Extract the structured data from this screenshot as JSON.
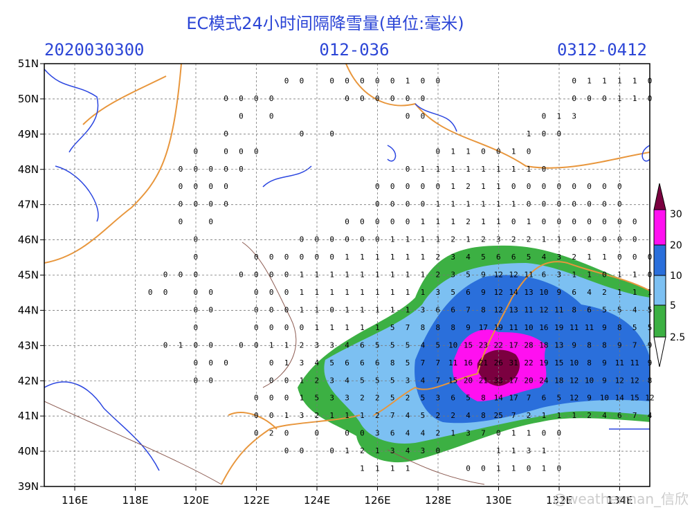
{
  "header": {
    "title": "EC模式24小时间隔降雪量(单位:毫米)",
    "init_time": "2020030300",
    "forecast_hours": "012-036",
    "valid_period": "0312-0412"
  },
  "lon_labels": [
    "116E",
    "118E",
    "120E",
    "122E",
    "124E",
    "126E",
    "128E",
    "130E",
    "132E",
    "134E"
  ],
  "lat_labels": [
    "51N",
    "50N",
    "49N",
    "48N",
    "47N",
    "46N",
    "45N",
    "44N",
    "43N",
    "42N",
    "41N",
    "40N",
    "39N"
  ],
  "colorbar_labels": [
    "30",
    "20",
    "10",
    "5",
    "2.5"
  ],
  "watermark": "@weatherman_信欣",
  "grid_values": [
    [
      null,
      null,
      null,
      null,
      null,
      null,
      null,
      null,
      null,
      null,
      null,
      null,
      null,
      null,
      null,
      null,
      0,
      0,
      null,
      0,
      0,
      0,
      0,
      0,
      1,
      0,
      0,
      null,
      null,
      null,
      null,
      null,
      null,
      null,
      null,
      0,
      1,
      1,
      1,
      1,
      0
    ],
    [
      null,
      null,
      null,
      null,
      null,
      null,
      null,
      null,
      null,
      null,
      null,
      null,
      0,
      0,
      0,
      0,
      null,
      null,
      null,
      null,
      0,
      0,
      0,
      0,
      0,
      0,
      null,
      null,
      null,
      null,
      null,
      null,
      null,
      null,
      null,
      0,
      0,
      0,
      1,
      1,
      0
    ],
    [
      null,
      null,
      null,
      null,
      null,
      null,
      null,
      null,
      null,
      null,
      null,
      null,
      null,
      0,
      null,
      0,
      null,
      null,
      null,
      null,
      null,
      null,
      null,
      null,
      0,
      0,
      null,
      null,
      null,
      null,
      null,
      null,
      null,
      0,
      1,
      3,
      null,
      null,
      null,
      null,
      null
    ],
    [
      null,
      null,
      null,
      null,
      null,
      null,
      null,
      null,
      null,
      null,
      null,
      null,
      0,
      null,
      null,
      null,
      null,
      0,
      null,
      0,
      null,
      null,
      null,
      null,
      null,
      null,
      null,
      null,
      null,
      null,
      null,
      null,
      1,
      0,
      0,
      null,
      null,
      null,
      null,
      null,
      null
    ],
    [
      null,
      null,
      null,
      null,
      null,
      null,
      null,
      null,
      null,
      null,
      0,
      null,
      0,
      0,
      0,
      null,
      null,
      null,
      null,
      null,
      null,
      null,
      null,
      null,
      null,
      null,
      0,
      1,
      1,
      0,
      0,
      1,
      0,
      null,
      null,
      null,
      null,
      null,
      null,
      null,
      null
    ],
    [
      null,
      null,
      null,
      null,
      null,
      null,
      null,
      null,
      null,
      0,
      0,
      0,
      0,
      0,
      null,
      null,
      null,
      null,
      null,
      null,
      null,
      null,
      null,
      null,
      0,
      1,
      1,
      1,
      1,
      1,
      1,
      1,
      1,
      0,
      null,
      null,
      null,
      null,
      null,
      null,
      null
    ],
    [
      null,
      null,
      null,
      null,
      null,
      null,
      null,
      null,
      null,
      0,
      0,
      0,
      0,
      null,
      null,
      null,
      null,
      null,
      null,
      null,
      null,
      null,
      0,
      0,
      0,
      0,
      0,
      1,
      2,
      1,
      1,
      0,
      0,
      0,
      0,
      0,
      0,
      0,
      0,
      null,
      null
    ],
    [
      null,
      null,
      null,
      null,
      null,
      null,
      null,
      null,
      null,
      0,
      0,
      0,
      0,
      null,
      null,
      null,
      null,
      null,
      null,
      null,
      null,
      null,
      0,
      0,
      0,
      0,
      1,
      1,
      1,
      1,
      1,
      1,
      0,
      0,
      0,
      0,
      0,
      0,
      0,
      null,
      null
    ],
    [
      null,
      null,
      null,
      null,
      null,
      null,
      null,
      null,
      null,
      0,
      null,
      0,
      null,
      null,
      null,
      null,
      null,
      null,
      null,
      null,
      0,
      0,
      0,
      0,
      0,
      1,
      1,
      1,
      2,
      1,
      1,
      0,
      1,
      0,
      0,
      0,
      0,
      0,
      0,
      0,
      null
    ],
    [
      null,
      null,
      null,
      null,
      null,
      null,
      null,
      null,
      null,
      null,
      0,
      null,
      null,
      null,
      null,
      null,
      null,
      0,
      0,
      0,
      0,
      0,
      0,
      1,
      1,
      1,
      1,
      2,
      1,
      2,
      3,
      2,
      2,
      1,
      1,
      0,
      0,
      0,
      0,
      0,
      null
    ],
    [
      null,
      null,
      null,
      null,
      null,
      null,
      null,
      null,
      null,
      null,
      0,
      null,
      null,
      null,
      0,
      0,
      0,
      0,
      0,
      0,
      1,
      1,
      1,
      1,
      1,
      1,
      2,
      3,
      4,
      5,
      6,
      6,
      5,
      4,
      3,
      2,
      1,
      1,
      0,
      0,
      0
    ],
    [
      null,
      null,
      null,
      null,
      null,
      null,
      null,
      null,
      0,
      0,
      0,
      null,
      null,
      0,
      0,
      0,
      0,
      1,
      1,
      1,
      1,
      1,
      1,
      1,
      1,
      1,
      2,
      3,
      5,
      9,
      12,
      12,
      11,
      6,
      3,
      1,
      1,
      0,
      1,
      1,
      0
    ],
    [
      null,
      null,
      null,
      null,
      null,
      null,
      null,
      0,
      0,
      null,
      0,
      0,
      null,
      null,
      0,
      0,
      0,
      1,
      1,
      1,
      1,
      1,
      1,
      1,
      1,
      1,
      3,
      5,
      6,
      9,
      12,
      14,
      13,
      10,
      9,
      6,
      4,
      2,
      1,
      1,
      1
    ],
    [
      null,
      null,
      null,
      null,
      null,
      null,
      null,
      null,
      null,
      null,
      0,
      0,
      null,
      null,
      0,
      0,
      0,
      1,
      1,
      0,
      1,
      1,
      1,
      1,
      1,
      3,
      6,
      6,
      7,
      8,
      12,
      13,
      11,
      12,
      11,
      8,
      6,
      5,
      5,
      4,
      5
    ],
    [
      null,
      null,
      null,
      null,
      null,
      null,
      null,
      null,
      null,
      null,
      0,
      null,
      null,
      null,
      0,
      0,
      0,
      0,
      1,
      1,
      1,
      1,
      1,
      5,
      7,
      8,
      8,
      8,
      9,
      17,
      19,
      11,
      10,
      16,
      19,
      11,
      11,
      9,
      8,
      5,
      5
    ],
    [
      null,
      null,
      null,
      null,
      null,
      null,
      null,
      null,
      0,
      1,
      0,
      0,
      null,
      0,
      0,
      1,
      1,
      2,
      3,
      3,
      4,
      6,
      5,
      5,
      5,
      4,
      5,
      10,
      15,
      23,
      22,
      17,
      28,
      18,
      13,
      9,
      8,
      8,
      9,
      7,
      9
    ],
    [
      null,
      null,
      null,
      null,
      null,
      null,
      null,
      null,
      null,
      null,
      0,
      0,
      0,
      null,
      null,
      0,
      1,
      3,
      4,
      5,
      6,
      6,
      6,
      8,
      5,
      7,
      7,
      11,
      16,
      21,
      26,
      31,
      22,
      19,
      15,
      10,
      8,
      9,
      11,
      11,
      9
    ],
    [
      null,
      null,
      null,
      null,
      null,
      null,
      null,
      null,
      null,
      null,
      0,
      0,
      null,
      null,
      null,
      0,
      0,
      1,
      2,
      3,
      4,
      5,
      5,
      5,
      3,
      4,
      7,
      15,
      20,
      21,
      33,
      17,
      20,
      24,
      18,
      12,
      10,
      9,
      12,
      12,
      8
    ],
    [
      null,
      null,
      null,
      null,
      null,
      null,
      null,
      null,
      null,
      null,
      null,
      null,
      null,
      null,
      0,
      0,
      0,
      1,
      5,
      3,
      3,
      2,
      2,
      5,
      2,
      5,
      3,
      6,
      5,
      8,
      14,
      17,
      7,
      6,
      5,
      12,
      9,
      10,
      14,
      15,
      12
    ],
    [
      null,
      null,
      null,
      null,
      null,
      null,
      null,
      null,
      null,
      null,
      null,
      null,
      null,
      null,
      0,
      0,
      1,
      3,
      2,
      1,
      1,
      1,
      2,
      7,
      4,
      5,
      2,
      2,
      4,
      8,
      25,
      7,
      2,
      1,
      1,
      1,
      2,
      4,
      6,
      7,
      4
    ],
    [
      null,
      null,
      null,
      null,
      null,
      null,
      null,
      null,
      null,
      null,
      null,
      null,
      null,
      null,
      0,
      2,
      0,
      null,
      0,
      null,
      0,
      0,
      3,
      6,
      4,
      4,
      2,
      1,
      3,
      7,
      0,
      1,
      1,
      0,
      0,
      null,
      null,
      null,
      null,
      null,
      null
    ],
    [
      null,
      null,
      null,
      null,
      null,
      null,
      null,
      null,
      null,
      null,
      null,
      null,
      null,
      null,
      null,
      null,
      0,
      0,
      null,
      0,
      1,
      2,
      1,
      3,
      4,
      3,
      0,
      null,
      null,
      null,
      1,
      1,
      3,
      1,
      null,
      null,
      null,
      null,
      null,
      null,
      null
    ],
    [
      null,
      null,
      null,
      null,
      null,
      null,
      null,
      null,
      null,
      null,
      null,
      null,
      null,
      null,
      null,
      null,
      null,
      null,
      null,
      null,
      null,
      1,
      1,
      1,
      1,
      null,
      null,
      null,
      0,
      0,
      1,
      1,
      0,
      1,
      0,
      null,
      null,
      null,
      null,
      null,
      null
    ]
  ]
}
